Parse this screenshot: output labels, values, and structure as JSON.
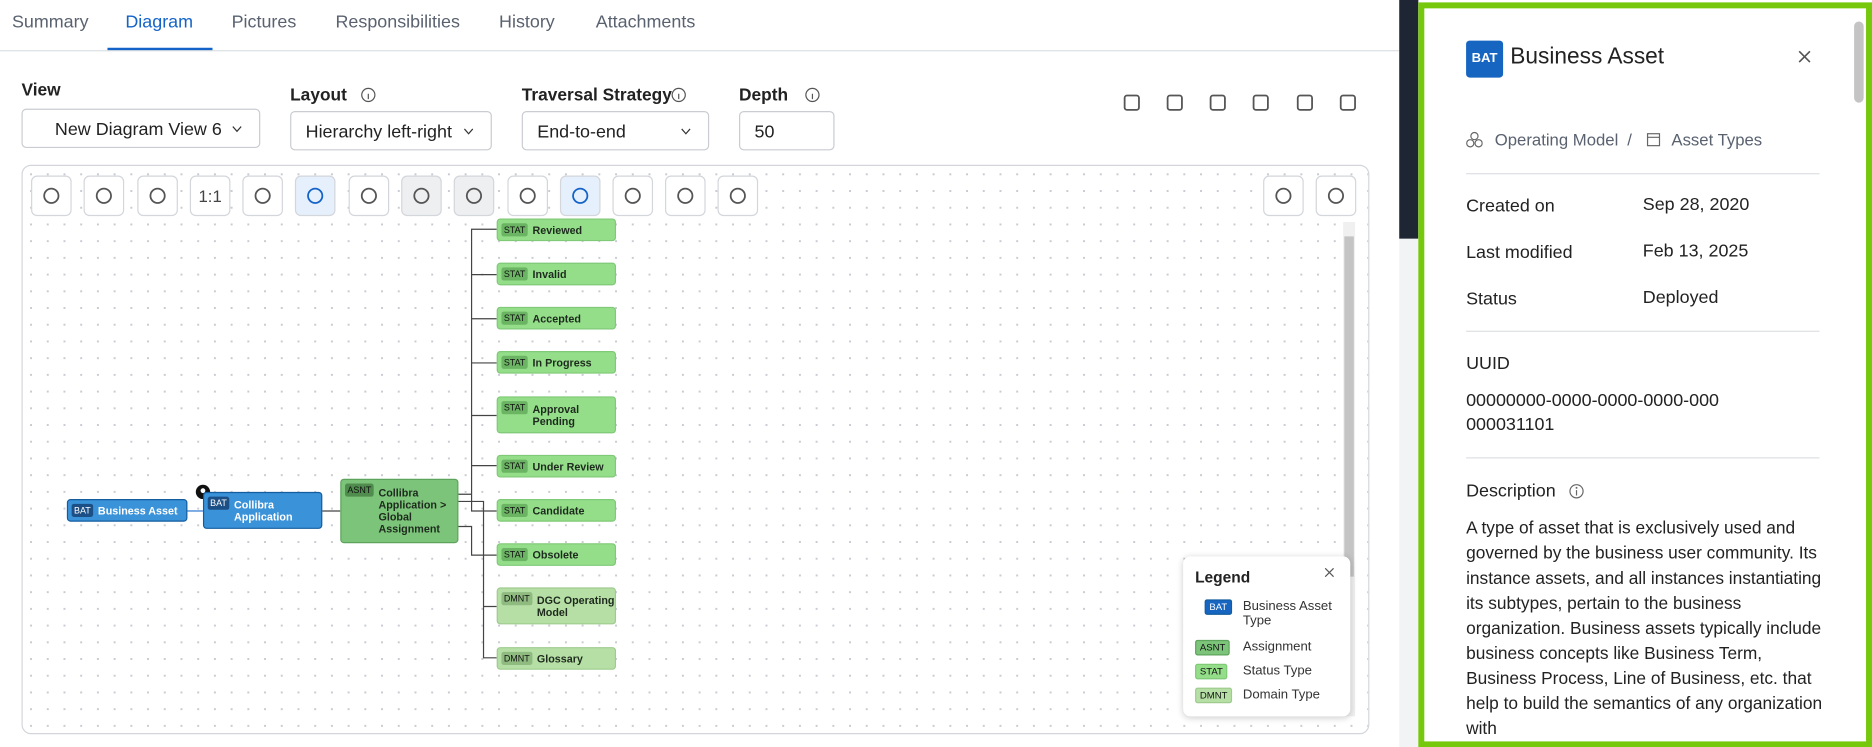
{
  "tabs": [
    "Summary",
    "Diagram",
    "Pictures",
    "Responsibilities",
    "History",
    "Attachments"
  ],
  "controls": [
    {
      "label": "View",
      "value": "New Diagram View 6"
    },
    {
      "label": "Layout",
      "value": "Hierarchy left-right"
    },
    {
      "label": "Traversal Strategy",
      "value": "End-to-end"
    },
    {
      "label": "Depth",
      "value": "50"
    }
  ],
  "toolbar_zoom": "1:1",
  "nodes": [
    {
      "tag": "BAT",
      "label": "Business Asset"
    },
    {
      "tag": "BAT",
      "label": "Collibra Application"
    },
    {
      "tag": "ASNT",
      "label": "Collibra Application > Global Assignment"
    },
    {
      "tag": "STAT",
      "label": "Reviewed"
    },
    {
      "tag": "STAT",
      "label": "Invalid"
    },
    {
      "tag": "STAT",
      "label": "Accepted"
    },
    {
      "tag": "STAT",
      "label": "In Progress"
    },
    {
      "tag": "STAT",
      "label": "Approval Pending"
    },
    {
      "tag": "STAT",
      "label": "Under Review"
    },
    {
      "tag": "STAT",
      "label": "Candidate"
    },
    {
      "tag": "STAT",
      "label": "Obsolete"
    },
    {
      "tag": "DMNT",
      "label": "DGC Operating Model"
    },
    {
      "tag": "DMNT",
      "label": "Glossary"
    }
  ],
  "legend": {
    "title": "Legend",
    "items": [
      {
        "tag": "BAT",
        "label": "Business Asset Type"
      },
      {
        "tag": "ASNT",
        "label": "Assignment"
      },
      {
        "tag": "STAT",
        "label": "Status Type"
      },
      {
        "tag": "DMNT",
        "label": "Domain Type"
      }
    ]
  },
  "panel": {
    "badge": "BAT",
    "title": "Business Asset",
    "breadcrumb": [
      "Operating Model",
      "Asset Types"
    ],
    "fields": [
      {
        "label": "Created on",
        "value": "Sep 28, 2020"
      },
      {
        "label": "Last modified",
        "value": "Feb 13, 2025"
      },
      {
        "label": "Status",
        "value": "Deployed"
      }
    ],
    "uuid_label": "UUID",
    "uuid": "00000000-0000-0000-0000-000000031101",
    "description_label": "Description",
    "description": "A type of asset that is exclusively used and governed by the business user community. Its instance assets, and all instances instantiating its subtypes, pertain to the business organization. Business assets typically include business concepts like Business Term, Business Process, Line of Business, etc. that help to build the semantics of any organization with"
  }
}
